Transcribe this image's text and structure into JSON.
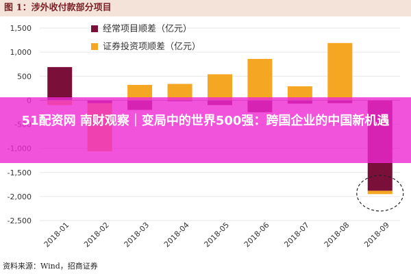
{
  "figure_title": "图 1：涉外收付款部分项目",
  "source": "资料来源：Wind，招商证券",
  "banner_text": "51配资网 南财观察｜变局中的世界500强：跨国企业的中国新机遇",
  "colors": {
    "current": "#7a0f3a",
    "securities": "#f5a623",
    "banner": "#ee28d2"
  },
  "chart_data": {
    "type": "bar",
    "stacked": true,
    "categories": [
      "2018-01",
      "2018-02",
      "2018-03",
      "2018-04",
      "2018-05",
      "2018-06",
      "2018-07",
      "2018-08",
      "2018-09"
    ],
    "series": [
      {
        "name": "经常项目顺差（亿元）",
        "values": [
          690,
          -60,
          -200,
          -20,
          -100,
          -250,
          -70,
          -60,
          -1880
        ]
      },
      {
        "name": "证券投资项顺差（亿元）",
        "values": [
          -100,
          -1000,
          320,
          340,
          540,
          860,
          290,
          1190,
          -70
        ]
      }
    ],
    "yticks": [
      1500,
      1000,
      500,
      0,
      -500,
      -1000,
      -1500,
      -2000,
      -2500
    ],
    "ytick_labels": [
      "1,500",
      "1,000",
      "500",
      "0",
      "-500",
      "-1,000",
      "-1,500",
      "-2,000",
      "-2,500"
    ],
    "ylim": [
      -2500,
      1500
    ],
    "legend_position": "top-left",
    "annotation": "dashed circle around 2018-09 bar",
    "xlabel": "",
    "ylabel": ""
  }
}
